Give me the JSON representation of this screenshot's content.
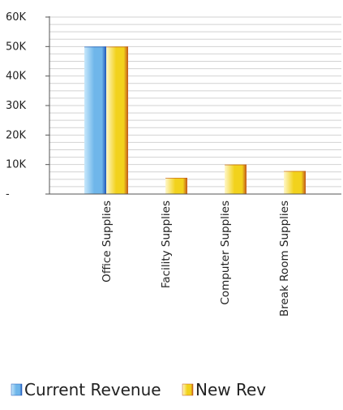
{
  "chart_data": {
    "type": "bar",
    "title": "",
    "xlabel": "",
    "ylabel": "",
    "categories": [
      "Office Supplies",
      "Facility Supplies",
      "Computer Supplies",
      "Break Room Supplies"
    ],
    "series": [
      {
        "name": "Current Revenue",
        "values": [
          50000,
          0,
          0,
          0
        ],
        "color": "#6fb6ea"
      },
      {
        "name": "New Rev",
        "values": [
          50000,
          5500,
          10000,
          7800
        ],
        "color": "#f2d21c"
      }
    ],
    "ylim": [
      0,
      60000
    ],
    "yticks": [
      0,
      10000,
      20000,
      30000,
      40000,
      50000,
      60000
    ],
    "ytick_labels": [
      "-",
      "10K",
      "20K",
      "30K",
      "40K",
      "50K",
      "60K"
    ],
    "grid": "horizontal minor lines",
    "legend": "bottom-left",
    "colors": {
      "current_revenue_light": "#c8e8fb",
      "current_revenue_mid": "#6fb6ea",
      "current_revenue_edge": "#1f56b8",
      "new_rev_light": "#fff7c9",
      "new_rev_mid": "#f2d21c",
      "new_rev_edge": "#c0561a",
      "axis": "#555555",
      "grid": "#d2d2d2"
    }
  }
}
